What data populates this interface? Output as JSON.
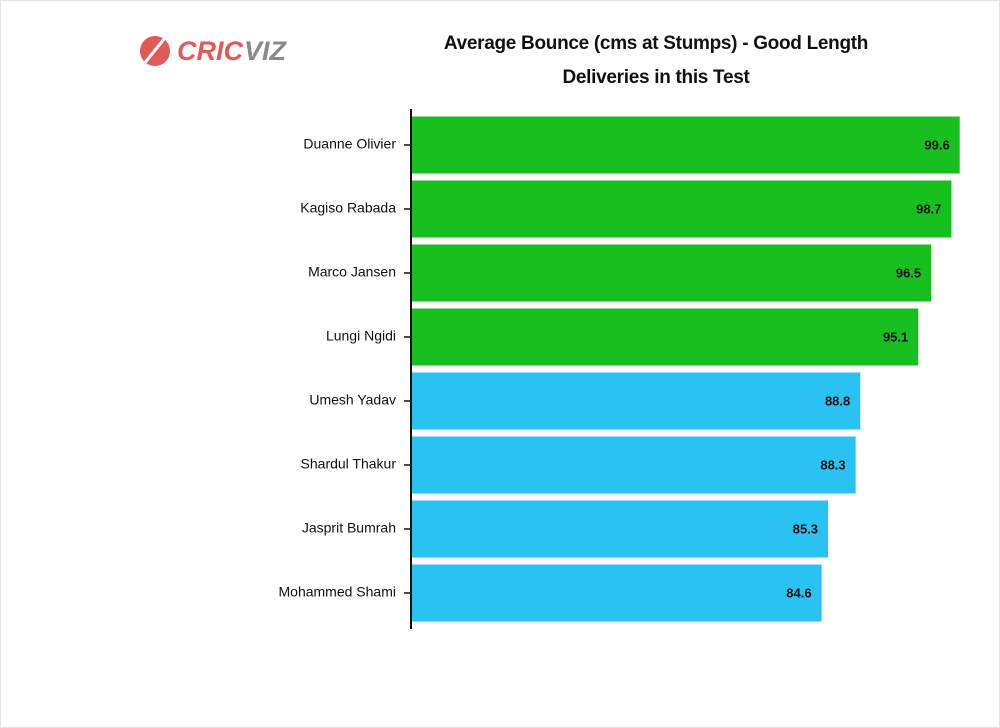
{
  "chart_data": {
    "type": "barh",
    "title": "Average Bounce (cms at Stumps) - Good Length Deliveries in this Test",
    "logo": [
      "CRIC",
      "VIZ"
    ],
    "categories": [
      "Duanne Olivier",
      "Kagiso Rabada",
      "Marco Jansen",
      "Lungi Ngidi",
      "Umesh Yadav",
      "Shardul Thakur",
      "Jasprit Bumrah",
      "Mohammed Shami"
    ],
    "values": [
      99.6,
      98.7,
      96.5,
      95.1,
      88.8,
      88.3,
      85.3,
      84.6
    ],
    "colors": [
      "#17bf1f",
      "#17bf1f",
      "#17bf1f",
      "#17bf1f",
      "#29c2f2",
      "#29c2f2",
      "#29c2f2",
      "#29c2f2"
    ],
    "xlim": [
      40,
      103
    ]
  }
}
